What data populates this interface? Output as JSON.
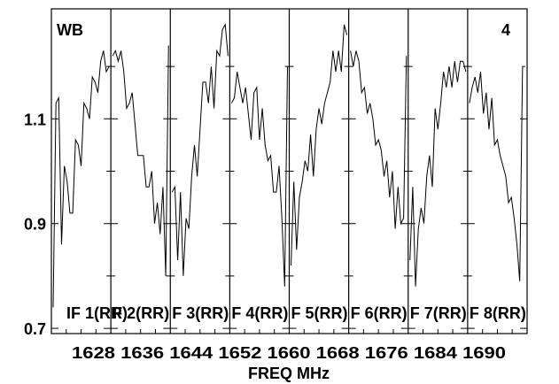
{
  "chart_data": {
    "type": "line",
    "corner_left": "WB",
    "corner_right": "4",
    "xlabel": "FREQ MHz",
    "ylabel": "",
    "ylim": [
      0.69,
      1.31
    ],
    "y_ticks": [
      {
        "value": 0.7,
        "label": "0.7"
      },
      {
        "value": 0.9,
        "label": "0.9"
      },
      {
        "value": 1.1,
        "label": "1.1"
      }
    ],
    "x_tick_text": "1628 1636 1644 1652 1660 1668 1676 1684 1690",
    "panels": [
      {
        "label": "IF 1(RR)",
        "values": [
          0.74,
          1.13,
          1.14,
          0.86,
          1.01,
          0.98,
          0.92,
          0.92,
          1.06,
          1.05,
          1.01,
          1.13,
          1.12,
          1.1,
          1.18,
          1.17,
          1.15,
          1.21,
          1.23,
          1.19,
          1.2
        ]
      },
      {
        "label": "F 2(RR)",
        "values": [
          1.22,
          1.23,
          1.21,
          1.23,
          1.19,
          1.12,
          1.13,
          1.15,
          1.09,
          1.03,
          1.03,
          1.03,
          0.97,
          0.97,
          1.0,
          0.9,
          0.94,
          0.88,
          0.97,
          0.8,
          1.24
        ]
      },
      {
        "label": "F 3(RR)",
        "values": [
          0.96,
          0.97,
          0.83,
          0.96,
          0.8,
          0.91,
          0.89,
          0.99,
          1.05,
          0.99,
          1.08,
          1.17,
          1.17,
          1.13,
          1.2,
          1.12,
          1.23,
          1.22,
          1.27,
          1.28,
          1.22
        ]
      },
      {
        "label": "F 4(RR)",
        "values": [
          1.13,
          1.14,
          1.19,
          1.16,
          1.13,
          1.16,
          1.11,
          1.06,
          1.15,
          1.16,
          1.06,
          1.12,
          1.05,
          1.02,
          1.03,
          0.96,
          0.96,
          1.01,
          0.91,
          0.78,
          1.2
        ]
      },
      {
        "label": "F 5(RR)",
        "values": [
          0.82,
          0.98,
          0.85,
          0.95,
          0.98,
          1.02,
          1.0,
          1.07,
          0.99,
          1.08,
          1.12,
          1.09,
          1.13,
          1.15,
          1.17,
          1.23,
          1.19,
          1.23,
          1.19,
          1.28,
          1.26
        ]
      },
      {
        "label": "F 6(RR)",
        "values": [
          1.23,
          1.2,
          1.23,
          1.21,
          1.15,
          1.16,
          1.11,
          1.13,
          1.1,
          1.05,
          1.06,
          1.04,
          0.99,
          1.02,
          0.95,
          1.0,
          0.89,
          0.97,
          0.9,
          0.91,
          1.22
        ]
      },
      {
        "label": "F 7(RR)",
        "values": [
          0.83,
          0.97,
          0.78,
          0.89,
          0.93,
          0.9,
          0.99,
          1.03,
          0.97,
          1.12,
          1.08,
          1.13,
          1.19,
          1.16,
          1.2,
          1.16,
          1.21,
          1.17,
          1.21,
          1.21,
          1.19
        ]
      },
      {
        "label": "F 8(RR)",
        "values": [
          1.13,
          1.16,
          1.18,
          1.15,
          1.19,
          1.11,
          1.15,
          1.08,
          1.14,
          1.05,
          1.06,
          1.03,
          1.01,
          0.99,
          0.94,
          0.95,
          0.91,
          0.86,
          0.79,
          1.2,
          1.2
        ]
      }
    ]
  }
}
